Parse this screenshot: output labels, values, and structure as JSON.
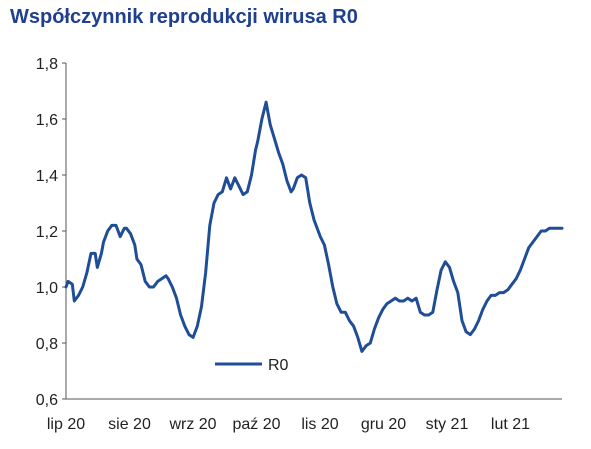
{
  "chart_data": {
    "type": "line",
    "title": "Współczynnik reprodukcji wirusa R0",
    "xlabel": "",
    "ylabel": "",
    "ylim": [
      0.6,
      1.8
    ],
    "yticks": [
      "0,6",
      "0,8",
      "1,0",
      "1,2",
      "1,4",
      "1,6",
      "1,8"
    ],
    "xticks": [
      "lip 20",
      "sie 20",
      "wrz 20",
      "paź 20",
      "lis 20",
      "gru 20",
      "sty 21",
      "lut 21"
    ],
    "grid": false,
    "legend": "center-bottom",
    "color": "#1f4e96",
    "series": [
      {
        "name": "R0",
        "x": [
          0,
          1,
          3,
          4,
          6,
          8,
          10,
          12,
          14,
          15,
          17,
          18,
          20,
          22,
          24,
          26,
          28,
          29,
          31,
          33,
          34,
          36,
          38,
          40,
          42,
          44,
          46,
          48,
          49,
          51,
          53,
          55,
          57,
          59,
          61,
          63,
          65,
          67,
          69,
          71,
          73,
          75,
          77,
          79,
          81,
          83,
          85,
          87,
          89,
          91,
          92,
          94,
          96,
          98,
          100,
          102,
          104,
          106,
          108,
          109,
          111,
          113,
          115,
          117,
          119,
          121,
          122,
          124,
          126,
          128,
          130,
          132,
          134,
          136,
          138,
          140,
          142,
          144,
          146,
          148,
          150,
          152,
          154,
          156,
          158,
          160,
          162,
          164,
          166,
          168,
          170,
          172,
          174,
          176,
          178,
          180,
          182,
          184,
          186,
          188,
          190,
          192,
          194,
          196,
          198,
          200,
          202,
          204,
          206,
          208,
          210,
          212,
          214,
          216,
          218,
          220,
          222,
          224,
          226,
          228,
          230,
          232,
          234,
          236,
          238
        ],
        "y": [
          1.0,
          1.02,
          1.01,
          0.95,
          0.97,
          1.0,
          1.05,
          1.12,
          1.12,
          1.07,
          1.12,
          1.16,
          1.2,
          1.22,
          1.22,
          1.18,
          1.21,
          1.21,
          1.19,
          1.15,
          1.1,
          1.08,
          1.02,
          1.0,
          1.0,
          1.02,
          1.03,
          1.04,
          1.03,
          1.0,
          0.96,
          0.9,
          0.86,
          0.83,
          0.82,
          0.86,
          0.93,
          1.05,
          1.22,
          1.3,
          1.33,
          1.34,
          1.39,
          1.35,
          1.39,
          1.36,
          1.33,
          1.34,
          1.4,
          1.49,
          1.52,
          1.6,
          1.66,
          1.58,
          1.53,
          1.48,
          1.44,
          1.38,
          1.34,
          1.35,
          1.39,
          1.4,
          1.39,
          1.3,
          1.24,
          1.2,
          1.18,
          1.15,
          1.08,
          1.0,
          0.94,
          0.91,
          0.91,
          0.88,
          0.86,
          0.82,
          0.77,
          0.79,
          0.8,
          0.85,
          0.89,
          0.92,
          0.94,
          0.95,
          0.96,
          0.95,
          0.95,
          0.96,
          0.95,
          0.96,
          0.91,
          0.9,
          0.9,
          0.91,
          0.99,
          1.06,
          1.09,
          1.07,
          1.02,
          0.98,
          0.88,
          0.84,
          0.83,
          0.85,
          0.88,
          0.92,
          0.95,
          0.97,
          0.97,
          0.98,
          0.98,
          0.99,
          1.01,
          1.03,
          1.06,
          1.1,
          1.14,
          1.16,
          1.18,
          1.2,
          1.2,
          1.21,
          1.21,
          1.21,
          1.21
        ]
      }
    ]
  }
}
